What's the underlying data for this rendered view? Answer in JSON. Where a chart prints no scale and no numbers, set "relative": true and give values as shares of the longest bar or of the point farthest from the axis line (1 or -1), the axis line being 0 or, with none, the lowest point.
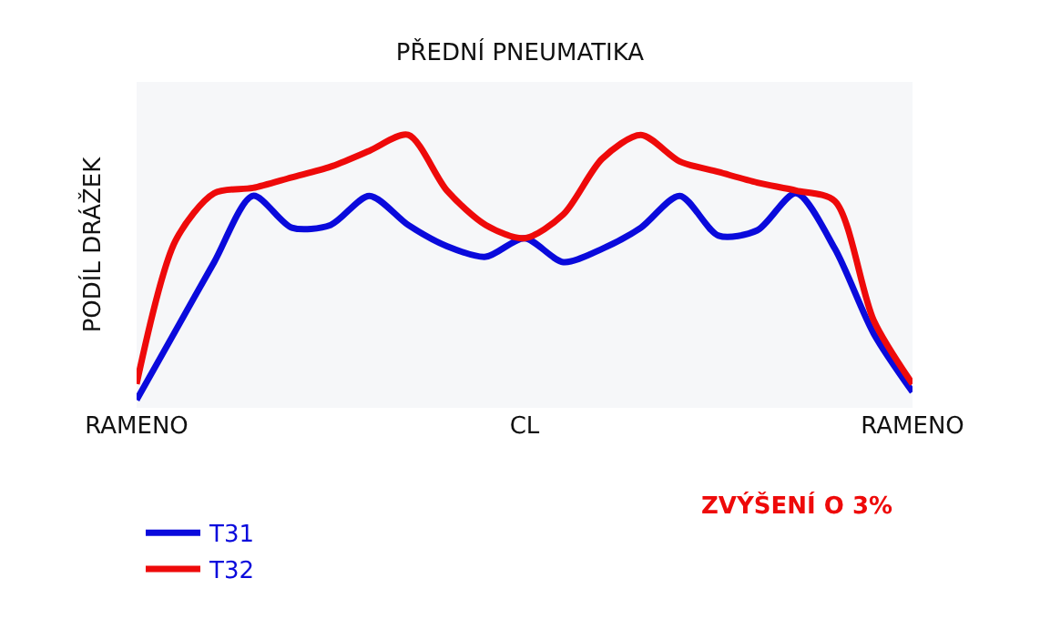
{
  "chart_data": {
    "type": "line",
    "title": "PŘEDNÍ PNEUMATIKA",
    "ylabel": "PODÍL DRÁŽEK",
    "relative": true,
    "categories": [
      "RAMENO",
      null,
      null,
      null,
      null,
      null,
      null,
      null,
      null,
      null,
      "CL",
      null,
      null,
      null,
      null,
      null,
      null,
      null,
      null,
      null,
      "RAMENO"
    ],
    "series": [
      {
        "name": "T31",
        "color": "#0a0adc",
        "values": [
          0,
          0.26,
          0.52,
          0.77,
          0.65,
          0.66,
          0.77,
          0.66,
          0.58,
          0.54,
          0.61,
          0.52,
          0.57,
          0.65,
          0.77,
          0.62,
          0.64,
          0.78,
          0.57,
          0.25,
          0.03
        ]
      },
      {
        "name": "T32",
        "color": "#ee0a0a",
        "values": [
          0.06,
          0.6,
          0.78,
          0.8,
          0.84,
          0.88,
          0.94,
          1.0,
          0.79,
          0.66,
          0.61,
          0.7,
          0.91,
          1.0,
          0.9,
          0.86,
          0.82,
          0.79,
          0.75,
          0.3,
          0.06
        ]
      }
    ],
    "annotations": [
      "ZVÝŠENÍ O 3%"
    ],
    "legend": "bottom",
    "grid": false,
    "marker": "none",
    "line_style": "solid"
  }
}
